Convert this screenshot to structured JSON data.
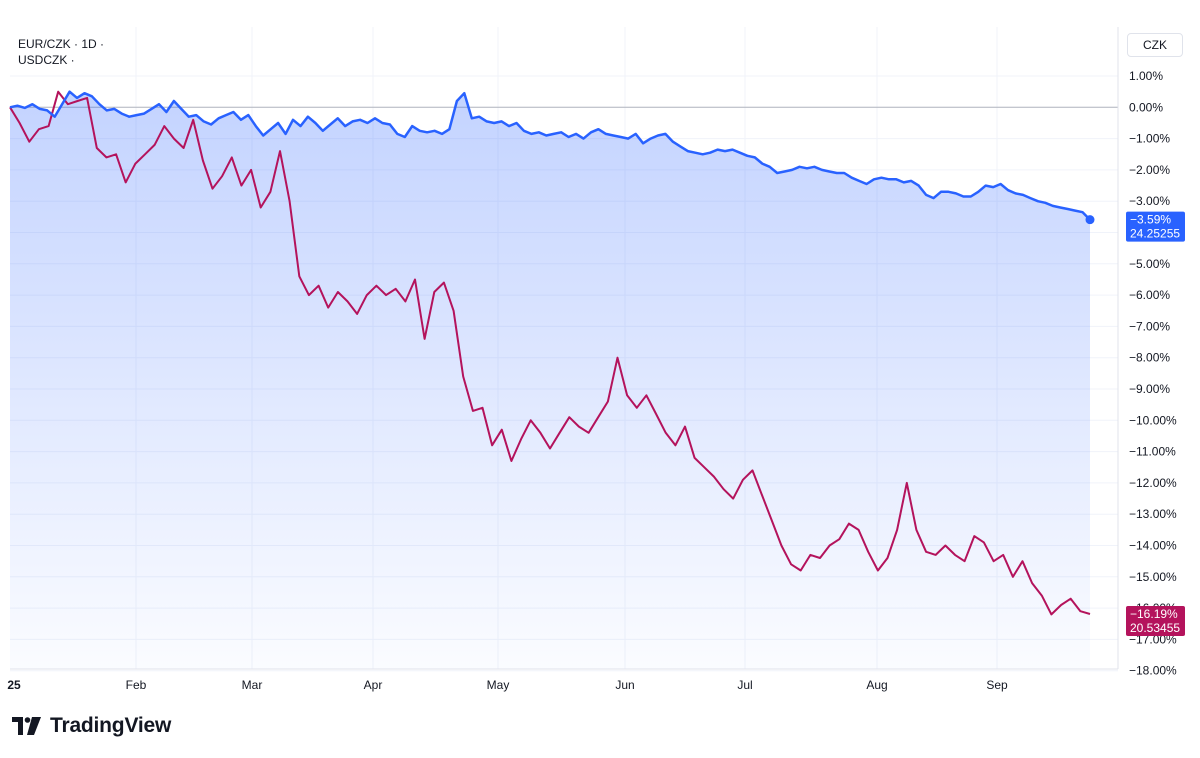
{
  "legend": {
    "series1": "EUR/CZK · 1D ·",
    "series2": "USDCZK ·"
  },
  "currency_label": "CZK",
  "brand": "TradingView",
  "colors": {
    "eur": "#2962ff",
    "usd": "#b4135c",
    "grid": "#f0f3fa",
    "text": "#131722"
  },
  "chart_data": {
    "type": "line",
    "title": "",
    "ylabel": "",
    "ylim": [
      -18,
      1
    ],
    "y_ticks": [
      "1.00%",
      "0.00%",
      "−1.00%",
      "−2.00%",
      "−3.00%",
      "−4.00%",
      "−5.00%",
      "−6.00%",
      "−7.00%",
      "−8.00%",
      "−9.00%",
      "−10.00%",
      "−11.00%",
      "−12.00%",
      "−13.00%",
      "−14.00%",
      "−15.00%",
      "−16.00%",
      "−17.00%",
      "−18.00%"
    ],
    "x_ticks": [
      "25",
      "Feb",
      "Mar",
      "Apr",
      "May",
      "Jun",
      "Jul",
      "Aug",
      "Sep"
    ],
    "grid": true,
    "series": [
      {
        "name": "EUR/CZK",
        "last_label": "−3.59%",
        "last_price": "24.25255",
        "values": [
          0.0,
          0.05,
          -0.02,
          0.1,
          -0.05,
          -0.1,
          -0.3,
          0.1,
          0.5,
          0.3,
          0.45,
          0.35,
          0.1,
          -0.1,
          -0.05,
          -0.2,
          -0.3,
          -0.25,
          -0.2,
          -0.05,
          0.1,
          -0.15,
          0.2,
          -0.05,
          -0.3,
          -0.25,
          -0.45,
          -0.55,
          -0.35,
          -0.25,
          -0.15,
          -0.4,
          -0.25,
          -0.6,
          -0.9,
          -0.7,
          -0.5,
          -0.85,
          -0.4,
          -0.6,
          -0.3,
          -0.5,
          -0.75,
          -0.55,
          -0.35,
          -0.6,
          -0.45,
          -0.4,
          -0.5,
          -0.35,
          -0.5,
          -0.55,
          -0.85,
          -0.95,
          -0.6,
          -0.75,
          -0.8,
          -0.75,
          -0.85,
          -0.7,
          0.2,
          0.45,
          -0.35,
          -0.3,
          -0.45,
          -0.5,
          -0.45,
          -0.6,
          -0.5,
          -0.75,
          -0.85,
          -0.8,
          -0.9,
          -0.85,
          -0.8,
          -0.95,
          -0.85,
          -1.0,
          -0.8,
          -0.7,
          -0.85,
          -0.9,
          -0.95,
          -1.0,
          -0.85,
          -1.15,
          -1.0,
          -0.9,
          -0.85,
          -1.1,
          -1.25,
          -1.4,
          -1.45,
          -1.5,
          -1.45,
          -1.35,
          -1.4,
          -1.35,
          -1.45,
          -1.55,
          -1.6,
          -1.8,
          -1.9,
          -2.1,
          -2.05,
          -2.0,
          -1.9,
          -1.95,
          -1.9,
          -2.0,
          -2.05,
          -2.1,
          -2.1,
          -2.25,
          -2.35,
          -2.45,
          -2.3,
          -2.25,
          -2.3,
          -2.3,
          -2.4,
          -2.35,
          -2.5,
          -2.8,
          -2.9,
          -2.7,
          -2.7,
          -2.75,
          -2.85,
          -2.85,
          -2.7,
          -2.5,
          -2.55,
          -2.45,
          -2.65,
          -2.75,
          -2.8,
          -2.9,
          -3.0,
          -3.05,
          -3.15,
          -3.2,
          -3.25,
          -3.3,
          -3.35,
          -3.59
        ]
      },
      {
        "name": "USDCZK",
        "last_label": "−16.19%",
        "last_price": "20.53455",
        "values": [
          0.0,
          -0.5,
          -1.1,
          -0.7,
          -0.6,
          0.5,
          0.1,
          0.2,
          0.3,
          -1.3,
          -1.6,
          -1.5,
          -2.4,
          -1.8,
          -1.5,
          -1.2,
          -0.6,
          -1.0,
          -1.3,
          -0.4,
          -1.7,
          -2.6,
          -2.2,
          -1.6,
          -2.5,
          -2.0,
          -3.2,
          -2.7,
          -1.4,
          -3.0,
          -5.4,
          -6.0,
          -5.7,
          -6.4,
          -5.9,
          -6.2,
          -6.6,
          -6.0,
          -5.7,
          -6.0,
          -5.8,
          -6.2,
          -5.5,
          -7.4,
          -5.9,
          -5.6,
          -6.5,
          -8.6,
          -9.7,
          -9.6,
          -10.8,
          -10.3,
          -11.3,
          -10.6,
          -10.0,
          -10.4,
          -10.9,
          -10.4,
          -9.9,
          -10.2,
          -10.4,
          -9.9,
          -9.4,
          -8.0,
          -9.2,
          -9.6,
          -9.2,
          -9.8,
          -10.4,
          -10.8,
          -10.2,
          -11.2,
          -11.5,
          -11.8,
          -12.2,
          -12.5,
          -11.9,
          -11.6,
          -12.4,
          -13.2,
          -14.0,
          -14.6,
          -14.8,
          -14.3,
          -14.4,
          -14.0,
          -13.8,
          -13.3,
          -13.5,
          -14.2,
          -14.8,
          -14.4,
          -13.5,
          -12.0,
          -13.5,
          -14.2,
          -14.3,
          -14.0,
          -14.3,
          -14.5,
          -13.7,
          -13.9,
          -14.5,
          -14.3,
          -15.0,
          -14.5,
          -15.2,
          -15.6,
          -16.2,
          -15.9,
          -15.7,
          -16.1,
          -16.19
        ]
      }
    ]
  }
}
